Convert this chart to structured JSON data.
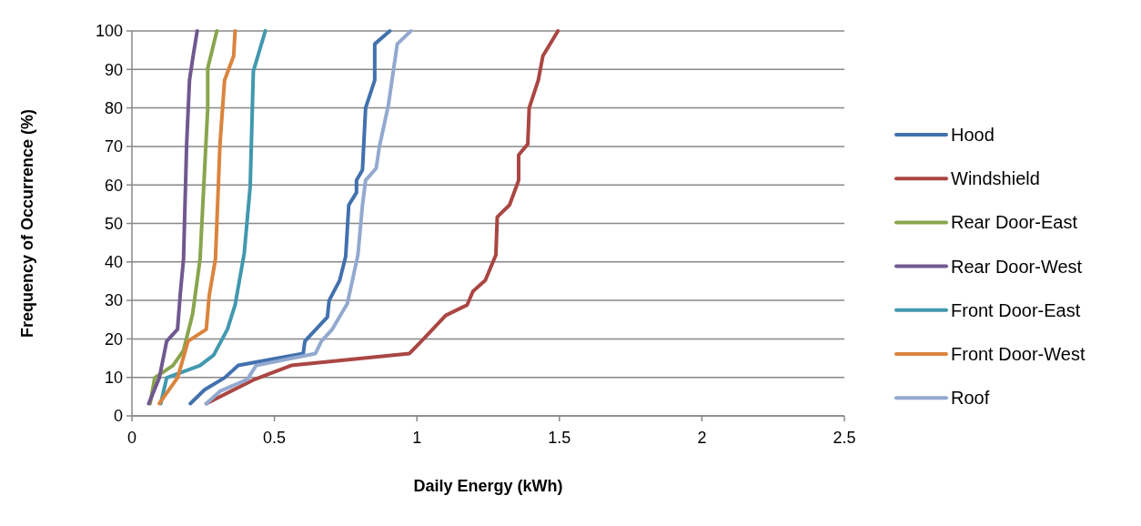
{
  "chart_data": {
    "type": "line",
    "xlabel": "Daily Energy (kWh)",
    "ylabel": "Frequency of Occurrence (%)",
    "xlim": [
      0,
      2.5
    ],
    "xticks": [
      0,
      0.5,
      1,
      1.5,
      2,
      2.5
    ],
    "ylim": [
      0,
      100
    ],
    "yticks": [
      0,
      10,
      20,
      30,
      40,
      50,
      60,
      70,
      80,
      90,
      100
    ],
    "grid": "y",
    "legend": "right",
    "marker": "none",
    "line_style": "solid",
    "series": [
      {
        "name": "Hood",
        "color": "#4271ae",
        "x": [
          0.205,
          0.255,
          0.325,
          0.373,
          0.601,
          0.607,
          0.686,
          0.692,
          0.729,
          0.75,
          0.761,
          0.788,
          0.788,
          0.809,
          0.82,
          0.852,
          0.852,
          0.905
        ],
        "values": [
          3.2,
          6.8,
          9.9,
          13.1,
          16.2,
          19.4,
          25.7,
          30,
          35.2,
          41.4,
          54.8,
          58,
          61.2,
          63.9,
          80,
          87.2,
          96.6,
          100
        ]
      },
      {
        "name": "Windshield",
        "color": "#aa4643",
        "x": [
          0.261,
          0.431,
          0.559,
          0.974,
          1.016,
          1.101,
          1.176,
          1.197,
          1.24,
          1.277,
          1.282,
          1.325,
          1.357,
          1.357,
          1.389,
          1.394,
          1.426,
          1.442,
          1.495
        ],
        "values": [
          3.2,
          9.5,
          13.1,
          16.2,
          19.4,
          26.1,
          28.8,
          32.4,
          35.2,
          41.8,
          51.7,
          54.8,
          61.2,
          67.8,
          70.6,
          80,
          87.2,
          93.5,
          100
        ]
      },
      {
        "name": "Rear Door-East",
        "color": "#89a54e",
        "x": [
          0.064,
          0.08,
          0.144,
          0.181,
          0.213,
          0.239,
          0.266,
          0.266,
          0.298
        ],
        "values": [
          3.2,
          9.9,
          13.1,
          17,
          26.5,
          40.7,
          80,
          90.3,
          100
        ]
      },
      {
        "name": "Rear Door-West",
        "color": "#71588f",
        "x": [
          0.059,
          0.096,
          0.122,
          0.16,
          0.17,
          0.181,
          0.192,
          0.202,
          0.213,
          0.229
        ],
        "values": [
          3.2,
          9.9,
          19.4,
          22.5,
          32,
          40.7,
          70.6,
          87.2,
          92.7,
          100
        ]
      },
      {
        "name": "Front Door-East",
        "color": "#4198af",
        "x": [
          0.101,
          0.122,
          0.239,
          0.287,
          0.335,
          0.362,
          0.394,
          0.415,
          0.426,
          0.468
        ],
        "values": [
          3.2,
          9.9,
          13.1,
          15.8,
          22.5,
          28.8,
          42.2,
          59.6,
          89.5,
          100
        ]
      },
      {
        "name": "Front Door-West",
        "color": "#db843d",
        "x": [
          0.096,
          0.16,
          0.197,
          0.261,
          0.271,
          0.293,
          0.309,
          0.325,
          0.357,
          0.362
        ],
        "values": [
          3.2,
          9.9,
          19.4,
          22.5,
          31.2,
          40.7,
          70.6,
          87.2,
          93.5,
          100
        ]
      },
      {
        "name": "Roof",
        "color": "#93a9cf",
        "x": [
          0.261,
          0.309,
          0.405,
          0.436,
          0.644,
          0.665,
          0.703,
          0.756,
          0.793,
          0.809,
          0.82,
          0.857,
          0.868,
          0.9,
          0.931,
          0.979
        ],
        "values": [
          3.2,
          6.4,
          9.5,
          13.1,
          16.2,
          19.4,
          22.5,
          29.2,
          41.8,
          54.8,
          61.2,
          64.3,
          69.8,
          80.8,
          96.6,
          100
        ]
      }
    ]
  }
}
